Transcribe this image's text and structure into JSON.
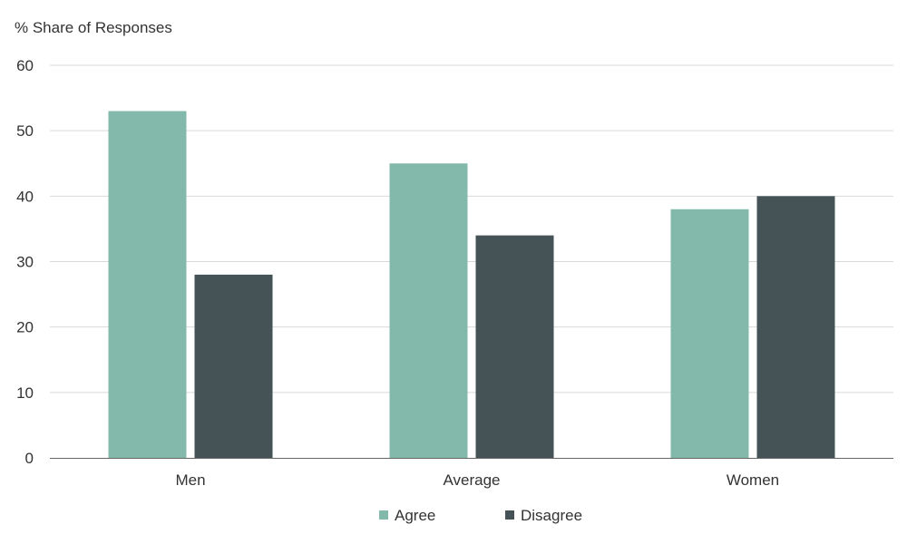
{
  "chart_data": {
    "type": "bar",
    "ylabel": "% Share of Responses",
    "categories": [
      "Men",
      "Average",
      "Women"
    ],
    "series": [
      {
        "name": "Agree",
        "color": "#82b9ab",
        "values": [
          53,
          45,
          38
        ]
      },
      {
        "name": "Disagree",
        "color": "#455357",
        "values": [
          28,
          34,
          40
        ]
      }
    ],
    "ylim": [
      0,
      60
    ],
    "yticks": [
      "0",
      "10",
      "20",
      "30",
      "40",
      "50",
      "60"
    ],
    "grid": true,
    "legend_position": "bottom"
  }
}
